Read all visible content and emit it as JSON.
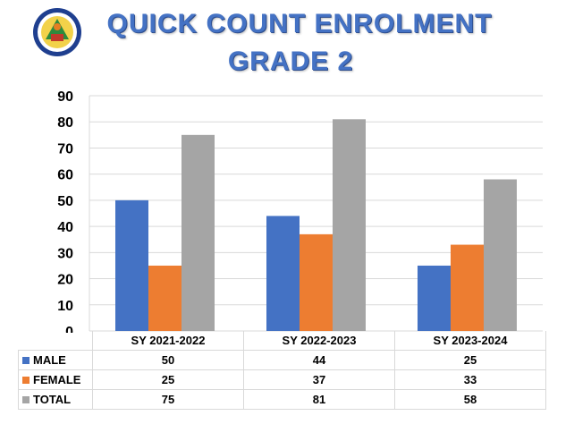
{
  "title_line1": "QUICK COUNT ENROLMENT",
  "title_line2": "GRADE 2",
  "colors": {
    "male": "#4472c4",
    "female": "#ed7d31",
    "total": "#a5a5a5",
    "title": "#4472c4"
  },
  "chart_data": {
    "type": "bar",
    "title": "QUICK COUNT ENROLMENT GRADE 2",
    "categories": [
      "SY 2021-2022",
      "SY 2022-2023",
      "SY 2023-2024"
    ],
    "series": [
      {
        "name": "MALE",
        "values": [
          50,
          44,
          25
        ]
      },
      {
        "name": "FEMALE",
        "values": [
          25,
          37,
          33
        ]
      },
      {
        "name": "TOTAL",
        "values": [
          75,
          81,
          58
        ]
      }
    ],
    "yticks": [
      "0",
      "10",
      "20",
      "30",
      "40",
      "50",
      "60",
      "70",
      "80",
      "90"
    ],
    "ylim": [
      0,
      90
    ],
    "grid": true,
    "legend": "data-table"
  }
}
